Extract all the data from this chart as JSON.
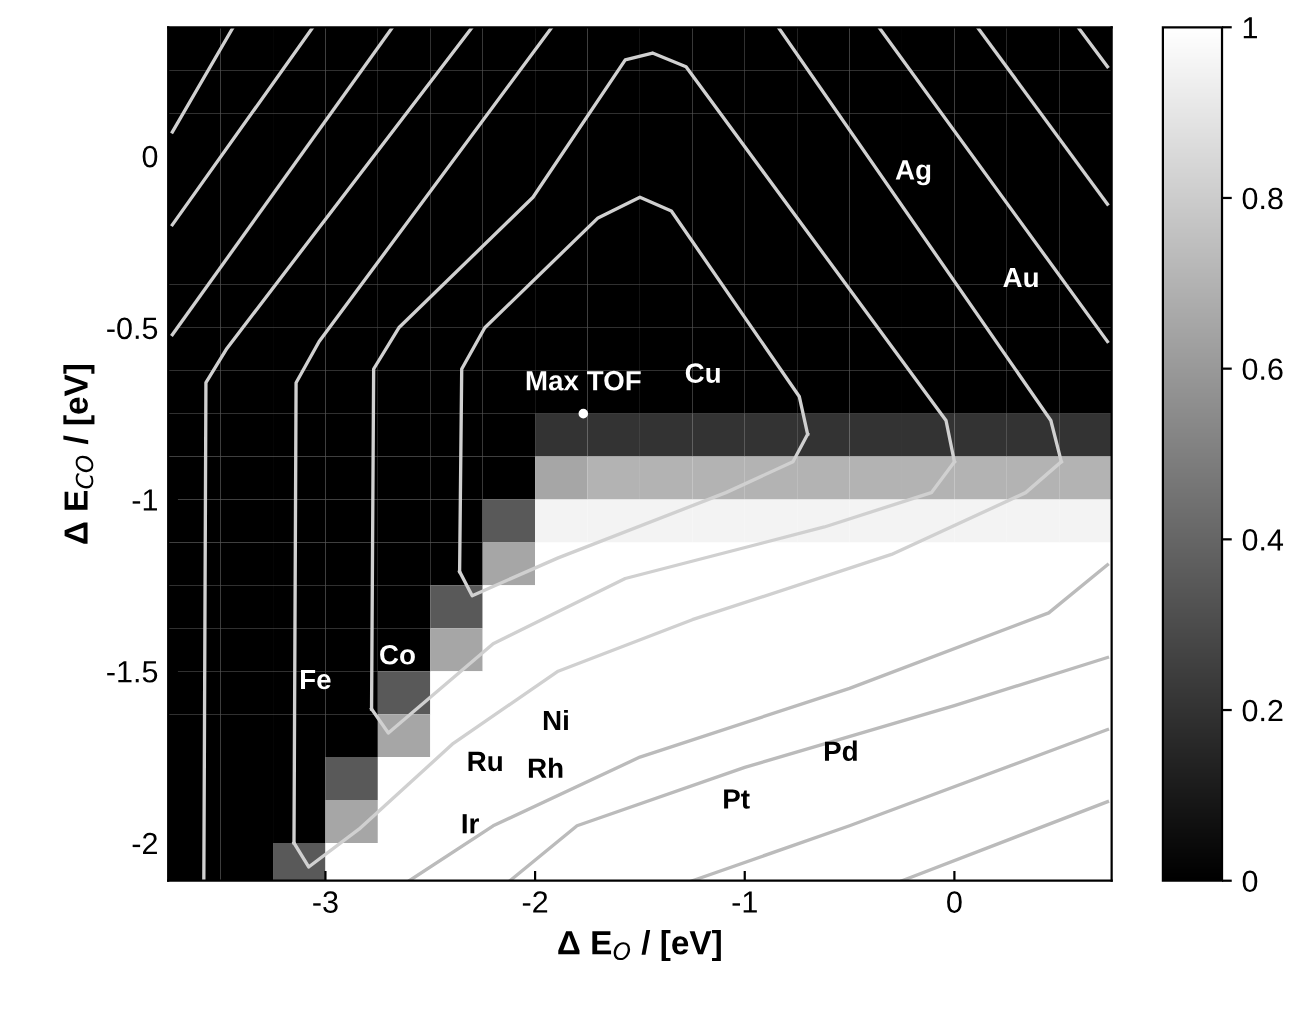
{
  "chart_data": {
    "type": "heatmap",
    "xlabel": "Δ E$_{O}$ / [eV]",
    "ylabel": "Δ E$_{CO}$ / [eV]",
    "x": [
      -3.625,
      -3.375,
      -3.125,
      -2.875,
      -2.625,
      -2.375,
      -2.125,
      -1.875,
      -1.625,
      -1.375,
      -1.125,
      -0.875,
      -0.625,
      -0.375,
      -0.125,
      0.125,
      0.375,
      0.625
    ],
    "y": [
      0.3125,
      0.1875,
      0.0625,
      -0.0625,
      -0.1875,
      -0.3125,
      -0.4375,
      -0.5625,
      -0.6875,
      -0.8125,
      -0.9375,
      -1.0625,
      -1.1875,
      -1.3125,
      -1.4375,
      -1.5625,
      -1.6875,
      -1.8125,
      -1.9375,
      -2.0625
    ],
    "cells": [
      [
        0,
        0,
        0,
        0,
        0,
        0,
        0,
        0,
        0,
        0,
        0,
        0,
        0,
        0,
        0,
        0,
        0,
        0
      ],
      [
        0,
        0,
        0,
        0,
        0,
        0,
        0,
        0,
        0,
        0,
        0,
        0,
        0,
        0,
        0,
        0,
        0,
        0
      ],
      [
        0,
        0,
        0,
        0,
        0,
        0,
        0,
        0,
        0,
        0,
        0,
        0,
        0,
        0,
        0,
        0,
        0,
        0
      ],
      [
        0,
        0,
        0,
        0,
        0,
        0,
        0,
        0,
        0,
        0,
        0,
        0,
        0,
        0,
        0,
        0,
        0,
        0
      ],
      [
        0,
        0,
        0,
        0,
        0,
        0,
        0,
        0,
        0,
        0,
        0,
        0,
        0,
        0,
        0,
        0,
        0,
        0
      ],
      [
        0,
        0,
        0,
        0,
        0,
        0,
        0,
        0,
        0,
        0,
        0,
        0,
        0,
        0,
        0,
        0,
        0,
        0
      ],
      [
        0,
        0,
        0,
        0,
        0,
        0,
        0,
        0,
        0,
        0,
        0,
        0,
        0,
        0,
        0,
        0,
        0,
        0
      ],
      [
        0,
        0,
        0,
        0,
        0,
        0,
        0,
        0,
        0,
        0,
        0,
        0,
        0,
        0,
        0,
        0,
        0,
        0
      ],
      [
        0,
        0,
        0,
        0,
        0,
        0,
        0,
        0,
        0,
        0,
        0,
        0,
        0,
        0,
        0,
        0,
        0,
        0
      ],
      [
        0,
        0,
        0,
        0,
        0,
        0,
        0,
        0.2,
        0.2,
        0.2,
        0.2,
        0.2,
        0.2,
        0.2,
        0.2,
        0.2,
        0.2,
        0.2
      ],
      [
        0,
        0,
        0,
        0,
        0,
        0,
        0,
        0.65,
        0.7,
        0.7,
        0.7,
        0.7,
        0.7,
        0.7,
        0.7,
        0.7,
        0.7,
        0.7
      ],
      [
        0,
        0,
        0,
        0,
        0,
        0,
        0.35,
        0.95,
        0.95,
        0.95,
        0.95,
        0.95,
        0.95,
        0.95,
        0.95,
        0.95,
        0.95,
        0.95
      ],
      [
        0,
        0,
        0,
        0,
        0,
        0,
        0.65,
        1,
        1,
        1,
        1,
        1,
        1,
        1,
        1,
        1,
        1,
        1
      ],
      [
        0,
        0,
        0,
        0,
        0,
        0.35,
        1,
        1,
        1,
        1,
        1,
        1,
        1,
        1,
        1,
        1,
        1,
        1
      ],
      [
        0,
        0,
        0,
        0,
        0,
        0.65,
        1,
        1,
        1,
        1,
        1,
        1,
        1,
        1,
        1,
        1,
        1,
        1
      ],
      [
        0,
        0,
        0,
        0,
        0.35,
        1,
        1,
        1,
        1,
        1,
        1,
        1,
        1,
        1,
        1,
        1,
        1,
        1
      ],
      [
        0,
        0,
        0,
        0,
        0.65,
        1,
        1,
        1,
        1,
        1,
        1,
        1,
        1,
        1,
        1,
        1,
        1,
        1
      ],
      [
        0,
        0,
        0,
        0.35,
        1,
        1,
        1,
        1,
        1,
        1,
        1,
        1,
        1,
        1,
        1,
        1,
        1,
        1
      ],
      [
        0,
        0,
        0,
        0.65,
        1,
        1,
        1,
        1,
        1,
        1,
        1,
        1,
        1,
        1,
        1,
        1,
        1,
        1
      ],
      [
        0,
        0,
        0.35,
        1,
        1,
        1,
        1,
        1,
        1,
        1,
        1,
        1,
        1,
        1,
        1,
        1,
        1,
        1
      ]
    ],
    "clim": [
      0,
      1
    ],
    "cticks": [
      0,
      0.2,
      0.4,
      0.6,
      0.8,
      1
    ],
    "xlim": [
      -3.75,
      0.75
    ],
    "ylim": [
      -2.11,
      0.375
    ],
    "xticks": [
      -3,
      -2,
      -1,
      0
    ],
    "yticks": [
      -2,
      -1.5,
      -1,
      -0.5,
      0
    ],
    "grid": false,
    "series": [
      {
        "type": "line",
        "color": "#d0d0d0",
        "x": [
          -2.36,
          -2.35,
          -2.24,
          -1.7,
          -1.5,
          -1.35,
          -0.74,
          -0.7
        ],
        "values": [
          -1.21,
          -0.62,
          -0.5,
          -0.18,
          -0.12,
          -0.16,
          -0.7,
          -0.81
        ]
      },
      {
        "type": "line",
        "color": "#d0d0d0",
        "x": [
          -2.36,
          -2.3,
          -1.89,
          -1.09,
          -0.77,
          -0.7
        ],
        "values": [
          -1.21,
          -1.28,
          -1.17,
          -0.98,
          -0.89,
          -0.81
        ]
      },
      {
        "type": "line",
        "color": "#d0d0d0",
        "x": [
          -2.78,
          -2.77,
          -2.65,
          -2.01,
          -1.57,
          -1.44,
          -1.28,
          -0.04,
          0.0
        ],
        "values": [
          -1.61,
          -0.62,
          -0.5,
          -0.12,
          0.28,
          0.3,
          0.26,
          -0.77,
          -0.89
        ]
      },
      {
        "type": "line",
        "color": "#d0d0d0",
        "x": [
          -2.78,
          -2.7,
          -2.2,
          -1.57,
          -0.62,
          -0.11,
          0.0
        ],
        "values": [
          -1.61,
          -1.68,
          -1.42,
          -1.23,
          -1.08,
          -0.98,
          -0.89
        ]
      },
      {
        "type": "line",
        "color": "#d0d0d0",
        "x": [
          -3.15,
          -3.14,
          -3.03,
          -1.92
        ],
        "values": [
          -2.0,
          -0.66,
          -0.54,
          0.375
        ]
      },
      {
        "type": "line",
        "color": "#d0d0d0",
        "x": [
          -3.15,
          -3.08,
          -2.84,
          -2.39,
          -1.89,
          -1.25,
          -0.3,
          0.34,
          0.51
        ],
        "values": [
          -2.0,
          -2.07,
          -1.96,
          -1.71,
          -1.5,
          -1.35,
          -1.16,
          -0.98,
          -0.89
        ]
      },
      {
        "type": "line",
        "color": "#d0d0d0",
        "x": [
          -0.84,
          0.46,
          0.51
        ],
        "values": [
          0.375,
          -0.77,
          -0.89
        ]
      },
      {
        "type": "line",
        "color": "#d0d0d0",
        "x": [
          -3.58,
          -3.57,
          -3.47,
          -2.3
        ],
        "values": [
          -2.11,
          -0.66,
          -0.56,
          0.375
        ]
      },
      {
        "type": "line",
        "color": "#d0d0d0",
        "x": [
          -0.36,
          0.73
        ],
        "values": [
          0.375,
          -0.54
        ]
      },
      {
        "type": "line",
        "color": "#d0d0d0",
        "x": [
          -2.68,
          -3.73
        ],
        "values": [
          0.375,
          -0.52
        ]
      },
      {
        "type": "line",
        "color": "#d0d0d0",
        "x": [
          0.11,
          0.73
        ],
        "values": [
          0.375,
          -0.14
        ]
      },
      {
        "type": "line",
        "color": "#d0d0d0",
        "x": [
          -3.06,
          -3.73
        ],
        "values": [
          0.375,
          -0.2
        ]
      },
      {
        "type": "line",
        "color": "#d0d0d0",
        "x": [
          0.59,
          0.73
        ],
        "values": [
          0.375,
          0.26
        ]
      },
      {
        "type": "line",
        "color": "#d0d0d0",
        "x": [
          -3.44,
          -3.73
        ],
        "values": [
          0.375,
          0.07
        ]
      },
      {
        "type": "line",
        "color": "#bbbbbb",
        "x": [
          -2.6,
          -2.2,
          -1.5,
          -0.5,
          0.45,
          0.73
        ],
        "values": [
          -2.11,
          -1.95,
          -1.75,
          -1.55,
          -1.33,
          -1.19
        ]
      },
      {
        "type": "line",
        "color": "#bbbbbb",
        "x": [
          -2.12,
          -1.8,
          -1.0,
          0.0,
          0.73
        ],
        "values": [
          -2.11,
          -1.95,
          -1.78,
          -1.6,
          -1.46
        ]
      },
      {
        "type": "line",
        "color": "#bbbbbb",
        "x": [
          -1.25,
          -0.5,
          0.73
        ],
        "values": [
          -2.11,
          -1.95,
          -1.67
        ]
      },
      {
        "type": "line",
        "color": "#bbbbbb",
        "x": [
          -0.25,
          0.73
        ],
        "values": [
          -2.11,
          -1.88
        ]
      },
      {
        "type": "scatter",
        "color": "#ffffff",
        "marker": "circle",
        "x": [
          -1.77
        ],
        "values": [
          -0.75
        ]
      }
    ],
    "annotations": [
      "Fe",
      "Co",
      "Ni",
      "Ru",
      "Rh",
      "Ir",
      "Pt",
      "Pd",
      "Cu",
      {
        "text": "Max TOF",
        "x": -1.77,
        "y": -0.75
      },
      "Ag",
      "Au"
    ]
  }
}
